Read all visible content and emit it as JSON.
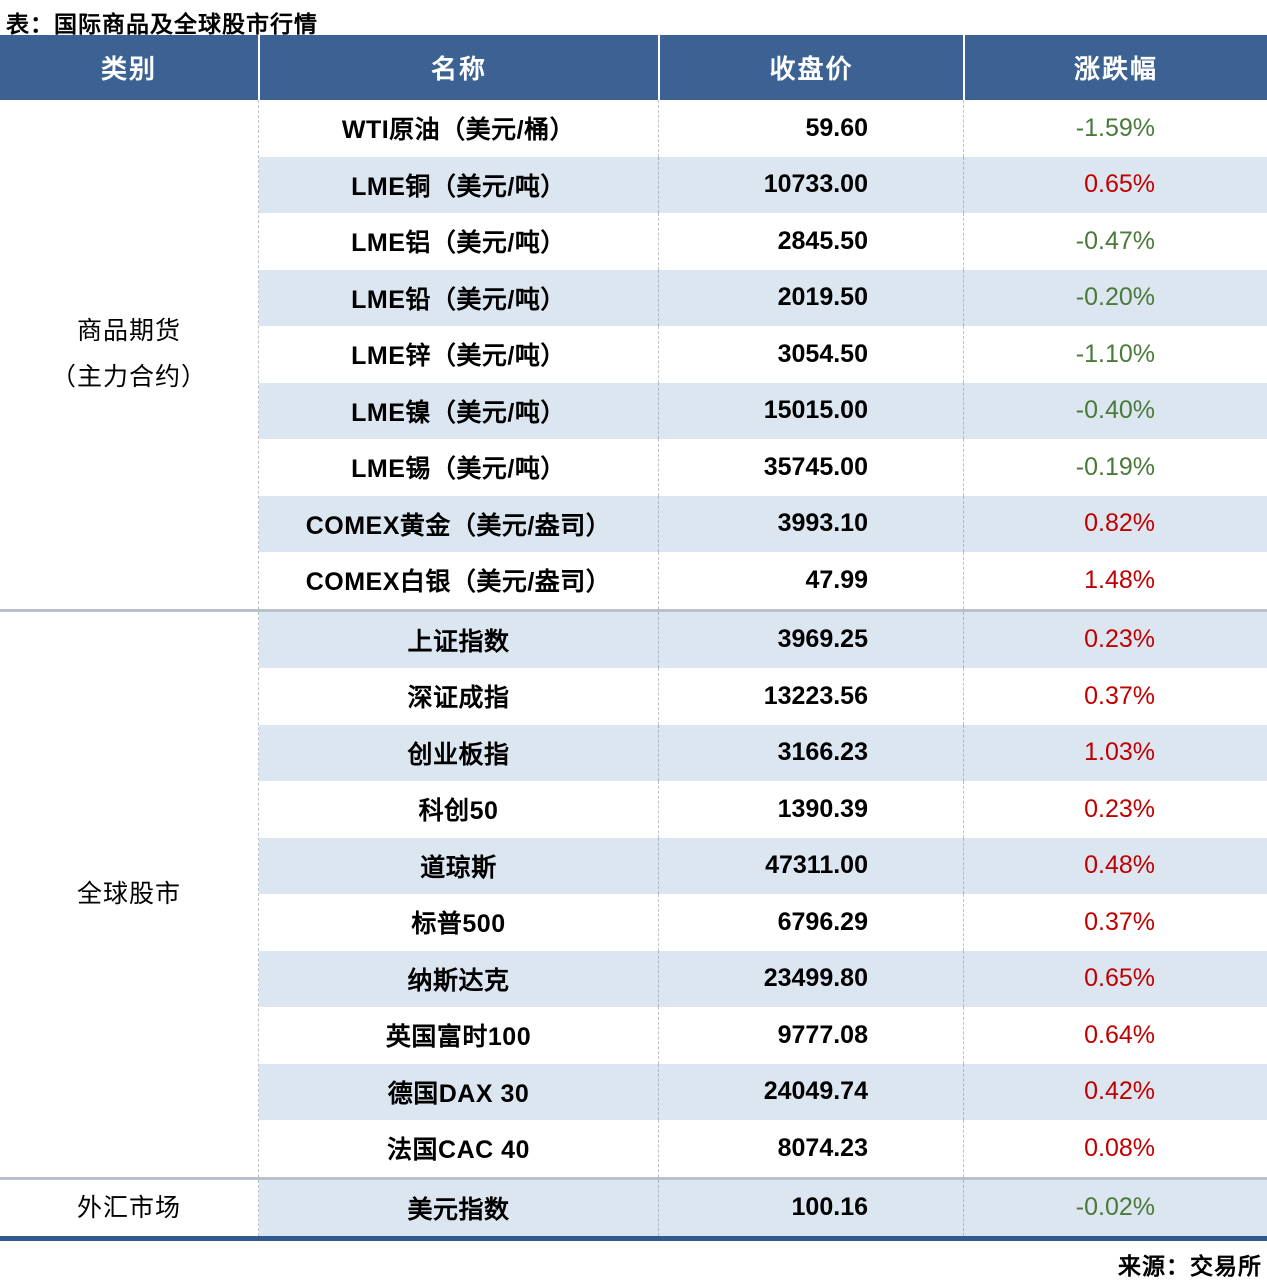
{
  "title": "表：国际商品及全球股市行情",
  "footer": {
    "source": "来源：交易所"
  },
  "colors": {
    "header_bg": "#3b6292",
    "alt_row_bg": "#dce6f1",
    "positive_red": "#c00000",
    "negative_green": "#4a7a3a",
    "bottom_rule_blue": "#2e5a8e"
  },
  "chart_data": {
    "type": "table",
    "title": "表：国际商品及全球股市行情",
    "columns": [
      "类别",
      "名称",
      "收盘价",
      "涨跌幅"
    ],
    "groups": [
      {
        "category_lines": [
          "商品期货",
          "（主力合约）"
        ],
        "rows": [
          {
            "name": "WTI原油（美元/桶）",
            "close": "59.60",
            "change": "-1.59%",
            "direction": "down"
          },
          {
            "name": "LME铜（美元/吨）",
            "close": "10733.00",
            "change": "0.65%",
            "direction": "up"
          },
          {
            "name": "LME铝（美元/吨）",
            "close": "2845.50",
            "change": "-0.47%",
            "direction": "down"
          },
          {
            "name": "LME铅（美元/吨）",
            "close": "2019.50",
            "change": "-0.20%",
            "direction": "down"
          },
          {
            "name": "LME锌（美元/吨）",
            "close": "3054.50",
            "change": "-1.10%",
            "direction": "down"
          },
          {
            "name": "LME镍（美元/吨）",
            "close": "15015.00",
            "change": "-0.40%",
            "direction": "down"
          },
          {
            "name": "LME锡（美元/吨）",
            "close": "35745.00",
            "change": "-0.19%",
            "direction": "down"
          },
          {
            "name": "COMEX黄金（美元/盎司）",
            "close": "3993.10",
            "change": "0.82%",
            "direction": "up"
          },
          {
            "name": "COMEX白银（美元/盎司）",
            "close": "47.99",
            "change": "1.48%",
            "direction": "up"
          }
        ]
      },
      {
        "category_lines": [
          "全球股市"
        ],
        "rows": [
          {
            "name": "上证指数",
            "close": "3969.25",
            "change": "0.23%",
            "direction": "up"
          },
          {
            "name": "深证成指",
            "close": "13223.56",
            "change": "0.37%",
            "direction": "up"
          },
          {
            "name": "创业板指",
            "close": "3166.23",
            "change": "1.03%",
            "direction": "up"
          },
          {
            "name": "科创50",
            "close": "1390.39",
            "change": "0.23%",
            "direction": "up"
          },
          {
            "name": "道琼斯",
            "close": "47311.00",
            "change": "0.48%",
            "direction": "up"
          },
          {
            "name": "标普500",
            "close": "6796.29",
            "change": "0.37%",
            "direction": "up"
          },
          {
            "name": "纳斯达克",
            "close": "23499.80",
            "change": "0.65%",
            "direction": "up"
          },
          {
            "name": "英国富时100",
            "close": "9777.08",
            "change": "0.64%",
            "direction": "up"
          },
          {
            "name": "德国DAX 30",
            "close": "24049.74",
            "change": "0.42%",
            "direction": "up"
          },
          {
            "name": "法国CAC 40",
            "close": "8074.23",
            "change": "0.08%",
            "direction": "up"
          }
        ]
      },
      {
        "category_lines": [
          "外汇市场"
        ],
        "rows": [
          {
            "name": "美元指数",
            "close": "100.16",
            "change": "-0.02%",
            "direction": "down"
          }
        ]
      }
    ]
  }
}
